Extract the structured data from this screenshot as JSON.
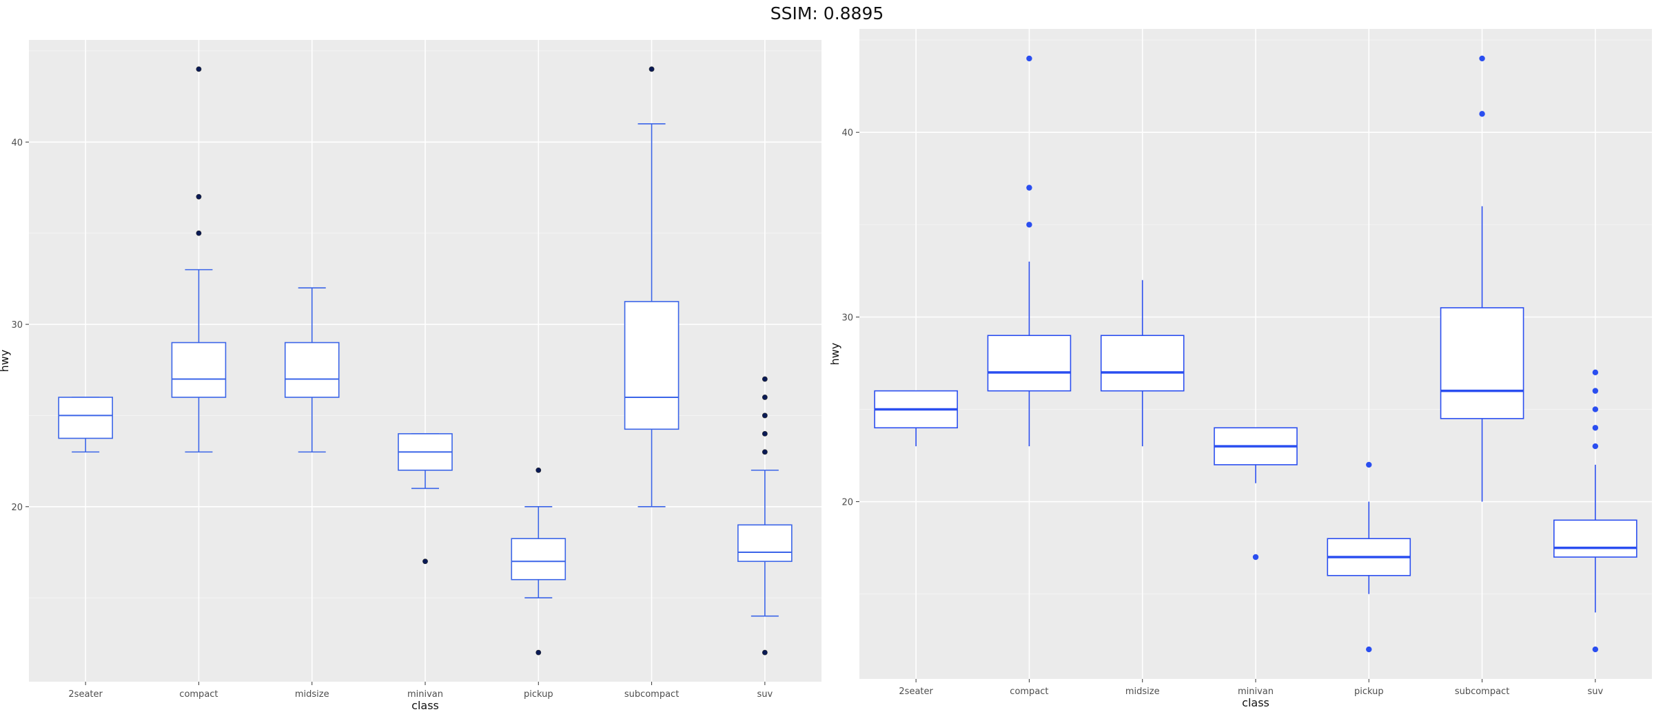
{
  "title": "SSIM: 0.8895",
  "colors": {
    "box": "#3a64e8",
    "box_right": "#2a4ef0",
    "outlier_left": "#0a1a55",
    "outlier_right": "#2a4ef0",
    "panel": "#ebebeb",
    "grid": "#ffffff"
  },
  "chart_data": [
    {
      "type": "boxplot",
      "xlabel": "class",
      "ylabel": "hwy",
      "categories": [
        "2seater",
        "compact",
        "midsize",
        "minivan",
        "pickup",
        "subcompact",
        "suv"
      ],
      "yticks": [
        20,
        30,
        40
      ],
      "ylim": [
        10.4,
        45.6
      ],
      "grid": true,
      "boxes": [
        {
          "category": "2seater",
          "low": 23,
          "q1": 23.75,
          "median": 25,
          "q3": 26,
          "high": 26,
          "outliers": []
        },
        {
          "category": "compact",
          "low": 23,
          "q1": 26,
          "median": 27,
          "q3": 29,
          "high": 33,
          "outliers": [
            35,
            37,
            44
          ]
        },
        {
          "category": "midsize",
          "low": 23,
          "q1": 26,
          "median": 27,
          "q3": 29,
          "high": 32,
          "outliers": []
        },
        {
          "category": "minivan",
          "low": 21,
          "q1": 22,
          "median": 23,
          "q3": 24,
          "high": 24,
          "outliers": [
            17
          ]
        },
        {
          "category": "pickup",
          "low": 15,
          "q1": 16,
          "median": 17,
          "q3": 18.25,
          "high": 20,
          "outliers": [
            12,
            22
          ]
        },
        {
          "category": "subcompact",
          "low": 20,
          "q1": 24.25,
          "median": 26,
          "q3": 31.25,
          "high": 41,
          "outliers": [
            44
          ]
        },
        {
          "category": "suv",
          "low": 14,
          "q1": 17,
          "median": 17.5,
          "q3": 19,
          "high": 22,
          "outliers": [
            12,
            23,
            24,
            25,
            26,
            27
          ]
        }
      ]
    },
    {
      "type": "boxplot",
      "xlabel": "class",
      "ylabel": "hwy",
      "categories": [
        "2seater",
        "compact",
        "midsize",
        "minivan",
        "pickup",
        "subcompact",
        "suv"
      ],
      "yticks": [
        20,
        30,
        40
      ],
      "ylim": [
        10.4,
        45.6
      ],
      "grid": true,
      "boxes": [
        {
          "category": "2seater",
          "low": 23,
          "q1": 24,
          "median": 25,
          "q3": 26,
          "high": 26,
          "outliers": []
        },
        {
          "category": "compact",
          "low": 23,
          "q1": 26,
          "median": 27,
          "q3": 29,
          "high": 33,
          "outliers": [
            35,
            37,
            44
          ]
        },
        {
          "category": "midsize",
          "low": 23,
          "q1": 26,
          "median": 27,
          "q3": 29,
          "high": 32,
          "outliers": []
        },
        {
          "category": "minivan",
          "low": 21,
          "q1": 22,
          "median": 23,
          "q3": 24,
          "high": 24,
          "outliers": [
            17
          ]
        },
        {
          "category": "pickup",
          "low": 15,
          "q1": 16,
          "median": 17,
          "q3": 18,
          "high": 20,
          "outliers": [
            12,
            22
          ]
        },
        {
          "category": "subcompact",
          "low": 20,
          "q1": 24.5,
          "median": 26,
          "q3": 30.5,
          "high": 36,
          "outliers": [
            41,
            44
          ]
        },
        {
          "category": "suv",
          "low": 14,
          "q1": 17,
          "median": 17.5,
          "q3": 19,
          "high": 22,
          "outliers": [
            12,
            23,
            24,
            25,
            26,
            27
          ]
        }
      ]
    }
  ]
}
